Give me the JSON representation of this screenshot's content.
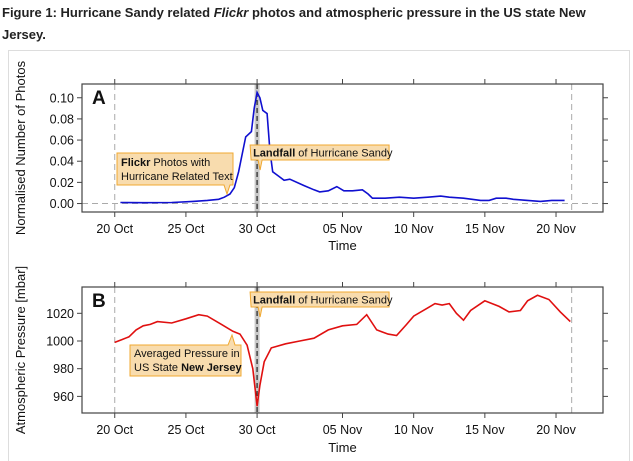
{
  "caption": {
    "prefix": "Figure 1: Hurricane Sandy related ",
    "italic": "Flickr",
    "suffix": " photos and atmospheric pressure in the US state New Jersey."
  },
  "colors": {
    "photos": "#1010d0",
    "pressure": "#e01010",
    "callout_fill": "#f8dcae",
    "callout_border": "#f0a830"
  },
  "chart_data": [
    {
      "type": "line",
      "panel": "A",
      "xlabel": "Time",
      "ylabel": "Normalised Number of Photos",
      "x_unit": "days since 20 Oct 2012",
      "xticks": [
        {
          "d": 0,
          "label": "20 Oct"
        },
        {
          "d": 5,
          "label": "25 Oct"
        },
        {
          "d": 10,
          "label": "30 Oct"
        },
        {
          "d": 16,
          "label": "05 Nov"
        },
        {
          "d": 21,
          "label": "10 Nov"
        },
        {
          "d": 26,
          "label": "15 Nov"
        },
        {
          "d": 31,
          "label": "20 Nov"
        }
      ],
      "yticks": [
        "0.00",
        "0.02",
        "0.04",
        "0.06",
        "0.08",
        "0.10"
      ],
      "xlim": [
        -2.3,
        34.3
      ],
      "ylim": [
        -0.008,
        0.113
      ],
      "series": [
        {
          "name": "Flickr Photos with Hurricane Related Text",
          "points": [
            [
              0.4,
              0.001
            ],
            [
              2,
              0.0008
            ],
            [
              4,
              0.001
            ],
            [
              5.5,
              0.002
            ],
            [
              6.5,
              0.003
            ],
            [
              7.3,
              0.004
            ],
            [
              7.7,
              0.006
            ],
            [
              8.1,
              0.009
            ],
            [
              8.4,
              0.015
            ],
            [
              8.7,
              0.03
            ],
            [
              9,
              0.05
            ],
            [
              9.2,
              0.063
            ],
            [
              9.6,
              0.068
            ],
            [
              9.8,
              0.09
            ],
            [
              10,
              0.105
            ],
            [
              10.2,
              0.1
            ],
            [
              10.4,
              0.088
            ],
            [
              10.7,
              0.085
            ],
            [
              10.9,
              0.05
            ],
            [
              11.1,
              0.03
            ],
            [
              11.5,
              0.026
            ],
            [
              11.9,
              0.022
            ],
            [
              12.3,
              0.023
            ],
            [
              13.3,
              0.017
            ],
            [
              14,
              0.013
            ],
            [
              14.4,
              0.011
            ],
            [
              15,
              0.012
            ],
            [
              15.6,
              0.016
            ],
            [
              16.1,
              0.012
            ],
            [
              16.7,
              0.012
            ],
            [
              17.4,
              0.013
            ],
            [
              17.8,
              0.009
            ],
            [
              18.1,
              0.005
            ],
            [
              19,
              0.005
            ],
            [
              20,
              0.006
            ],
            [
              21,
              0.005
            ],
            [
              22,
              0.006
            ],
            [
              22.9,
              0.007
            ],
            [
              23.5,
              0.006
            ],
            [
              24.5,
              0.005
            ],
            [
              25.7,
              0.003
            ],
            [
              26.3,
              0.003
            ],
            [
              26.8,
              0.005
            ],
            [
              27.5,
              0.005
            ],
            [
              28,
              0.004
            ],
            [
              29,
              0.003
            ],
            [
              29.9,
              0.002
            ],
            [
              30.7,
              0.003
            ],
            [
              31.6,
              0.003
            ]
          ]
        }
      ],
      "annotations": {
        "series": {
          "bold": "Flickr",
          "rest1": " Photos with",
          "line2": "Hurricane Related Text"
        },
        "landfall": {
          "bold": "Landfall",
          "rest": " of Hurricane Sandy"
        }
      },
      "reference_lines": {
        "landfall_day": 10,
        "start_day": 0,
        "end_day": 32.1,
        "baseline": 0
      }
    },
    {
      "type": "line",
      "panel": "B",
      "xlabel": "Time",
      "ylabel": "Atmospheric Pressure [mbar]",
      "x_unit": "days since 20 Oct 2012",
      "xticks": [
        {
          "d": 0,
          "label": "20 Oct"
        },
        {
          "d": 5,
          "label": "25 Oct"
        },
        {
          "d": 10,
          "label": "30 Oct"
        },
        {
          "d": 16,
          "label": "05 Nov"
        },
        {
          "d": 21,
          "label": "10 Nov"
        },
        {
          "d": 26,
          "label": "15 Nov"
        },
        {
          "d": 31,
          "label": "20 Nov"
        }
      ],
      "yticks": [
        "960",
        "980",
        "1000",
        "1020"
      ],
      "xlim": [
        -2.3,
        34.3
      ],
      "ylim": [
        948,
        1039
      ],
      "series": [
        {
          "name": "Averaged Pressure in US State New Jersey",
          "points": [
            [
              0,
              999
            ],
            [
              0.5,
              1001
            ],
            [
              1,
              1003
            ],
            [
              1.5,
              1008
            ],
            [
              2,
              1011
            ],
            [
              2.5,
              1012
            ],
            [
              3,
              1014
            ],
            [
              4,
              1013
            ],
            [
              5,
              1016
            ],
            [
              5.9,
              1019
            ],
            [
              6.5,
              1018
            ],
            [
              7.5,
              1012
            ],
            [
              8.3,
              1007
            ],
            [
              8.8,
              1005
            ],
            [
              9.3,
              997
            ],
            [
              9.7,
              980
            ],
            [
              10,
              953
            ],
            [
              10.2,
              968
            ],
            [
              10.5,
              985
            ],
            [
              11,
              995
            ],
            [
              12,
              998
            ],
            [
              13,
              1000
            ],
            [
              14,
              1002
            ],
            [
              15,
              1008
            ],
            [
              16,
              1011
            ],
            [
              17,
              1012
            ],
            [
              17.7,
              1019
            ],
            [
              18.4,
              1008
            ],
            [
              19.2,
              1005
            ],
            [
              19.8,
              1004
            ],
            [
              20.5,
              1012
            ],
            [
              21,
              1018
            ],
            [
              22,
              1024
            ],
            [
              22.5,
              1027
            ],
            [
              23,
              1026
            ],
            [
              23.5,
              1027
            ],
            [
              24,
              1020
            ],
            [
              24.5,
              1015
            ],
            [
              25,
              1022
            ],
            [
              26,
              1029
            ],
            [
              27,
              1025
            ],
            [
              27.7,
              1021
            ],
            [
              28.5,
              1022
            ],
            [
              29,
              1029
            ],
            [
              29.7,
              1033
            ],
            [
              30.5,
              1030
            ],
            [
              31.3,
              1021
            ],
            [
              32,
              1014
            ]
          ]
        }
      ],
      "annotations": {
        "series": {
          "line1": "Averaged Pressure in",
          "rest2": "US State ",
          "bold": "New Jersey"
        },
        "landfall": {
          "bold": "Landfall",
          "rest": " of Hurricane Sandy"
        }
      },
      "reference_lines": {
        "landfall_day": 10,
        "start_day": 0,
        "end_day": 32.1
      }
    }
  ]
}
